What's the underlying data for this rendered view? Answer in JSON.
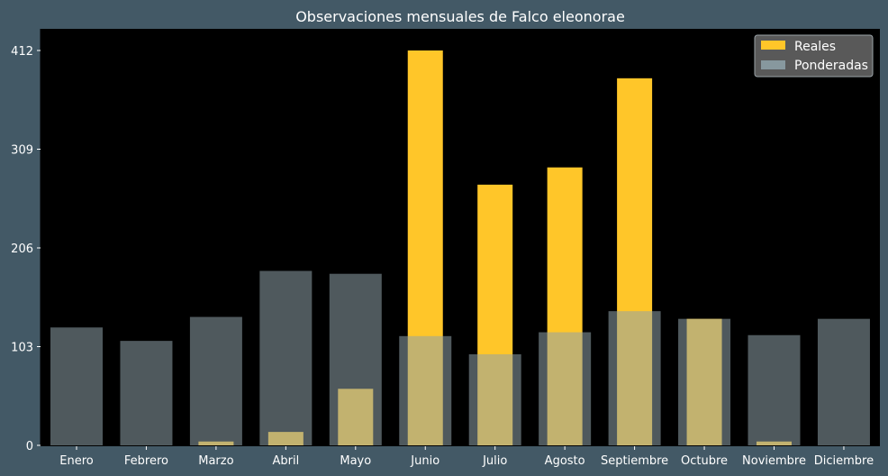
{
  "chart_data": {
    "type": "bar",
    "title": "Observaciones mensuales de Falco eleonorae",
    "xlabel": "",
    "ylabel": "",
    "categories": [
      "Enero",
      "Febrero",
      "Marzo",
      "Abril",
      "Mayo",
      "Junio",
      "Julio",
      "Agosto",
      "Septiembre",
      "Octubre",
      "Noviembre",
      "Diciembre"
    ],
    "yticks": [
      0,
      103,
      206,
      309,
      412
    ],
    "ylim": [
      0,
      433
    ],
    "grid": false,
    "legend_position": "top-right",
    "series": [
      {
        "name": "Reales",
        "color": "#ffc629",
        "values": [
          0,
          0,
          4,
          14,
          59,
          412,
          272,
          290,
          383,
          132,
          4,
          0
        ]
      },
      {
        "name": "Ponderadas",
        "color": "#8fa3aa",
        "opacity": 0.55,
        "values": [
          123,
          109,
          134,
          182,
          179,
          114,
          95,
          118,
          140,
          132,
          115,
          132
        ]
      }
    ],
    "colors": {
      "figure_background": "#435966",
      "plot_background": "#000000",
      "text": "#ffffff",
      "legend_background": "#595959"
    }
  }
}
